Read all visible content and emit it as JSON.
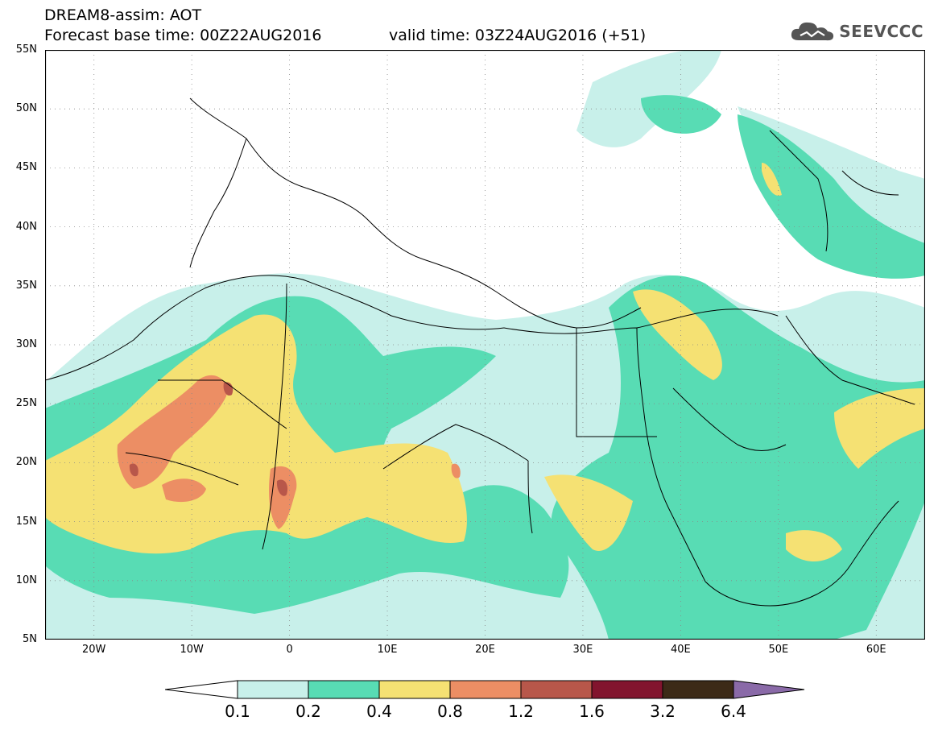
{
  "title": {
    "line1": "DREAM8-assim: AOT",
    "line2": "Forecast base time: 00Z22AUG2016",
    "line2b": "valid time: 03Z24AUG2016 (+51)"
  },
  "logo": {
    "text": "SEEVCCC",
    "icon": "cloud-icon"
  },
  "map": {
    "lon_range": [
      -25,
      65
    ],
    "lat_range": [
      5,
      55
    ],
    "grid": "dotted",
    "lat_labels": [
      "55N",
      "50N",
      "45N",
      "40N",
      "35N",
      "30N",
      "25N",
      "20N",
      "15N",
      "10N",
      "5N"
    ],
    "lat_values": [
      55,
      50,
      45,
      40,
      35,
      30,
      25,
      20,
      15,
      10,
      5
    ],
    "lon_labels": [
      "20W",
      "10W",
      "0",
      "10E",
      "20E",
      "30E",
      "40E",
      "50E",
      "60E"
    ],
    "lon_values": [
      -20,
      -10,
      0,
      10,
      20,
      30,
      40,
      50,
      60
    ]
  },
  "colorbar": {
    "levels": [
      "0.1",
      "0.2",
      "0.4",
      "0.8",
      "1.2",
      "1.6",
      "3.2",
      "6.4"
    ],
    "colors": [
      "#c8f0ea",
      "#58dcb4",
      "#f5e173",
      "#ec8e64",
      "#b8574a",
      "#82142e",
      "#3c2a17"
    ],
    "under_color": "#ffffff",
    "over_color": "#8a6aa8"
  }
}
